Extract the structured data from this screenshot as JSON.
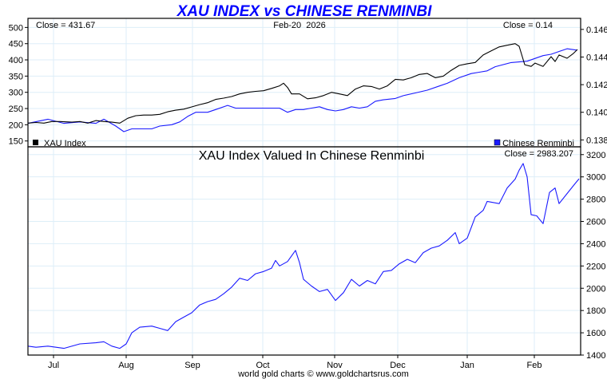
{
  "colors": {
    "xau": "#000000",
    "cny": "#1a1aff",
    "ratio": "#1a1aff",
    "grid": "#ddeef8",
    "title": "#0000ff"
  },
  "title": "XAU INDEX vs CHINESE RENMINBI",
  "footer": "world gold charts © www.goldchartsrus.com",
  "chart_data": [
    {
      "type": "line",
      "title": "XAU INDEX vs CHINESE RENMINBI",
      "date_label": "Feb-20  2026",
      "left_close": "Close = 431.67",
      "right_close": "Close = 0.14",
      "xlim": [
        0,
        173
      ],
      "x_unit": "trading days from chart start",
      "left_ylim": [
        132,
        528
      ],
      "left_ticks": [
        "150",
        "200",
        "250",
        "300",
        "350",
        "400",
        "450",
        "500"
      ],
      "right_ylim": [
        0.1375,
        0.1468
      ],
      "right_ticks": [
        "0.138",
        "0.140",
        "0.142",
        "0.144",
        "0.146"
      ],
      "legend": [
        {
          "label": "XAU Index",
          "placement": "bottom-left"
        },
        {
          "label": "Chinese Renminbi",
          "placement": "bottom-right"
        }
      ],
      "series": [
        {
          "name": "XAU Index",
          "axis": "left",
          "points": [
            [
              0,
              205
            ],
            [
              2.5,
              207
            ],
            [
              5,
              205
            ],
            [
              7.5,
              210
            ],
            [
              10,
              210
            ],
            [
              13.75,
              208
            ],
            [
              16.25,
              210
            ],
            [
              18.75,
              205
            ],
            [
              21.25,
              213
            ],
            [
              23.75,
              210
            ],
            [
              26.25,
              208
            ],
            [
              28.75,
              205
            ],
            [
              31.25,
              220
            ],
            [
              33.75,
              228
            ],
            [
              36.25,
              230
            ],
            [
              38.75,
              230
            ],
            [
              41.25,
              232
            ],
            [
              43.75,
              240
            ],
            [
              46.25,
              245
            ],
            [
              48.75,
              248
            ],
            [
              51.25,
              255
            ],
            [
              53.75,
              262
            ],
            [
              56.25,
              268
            ],
            [
              58.75,
              278
            ],
            [
              61.25,
              282
            ],
            [
              63.75,
              287
            ],
            [
              66.25,
              295
            ],
            [
              68.75,
              300
            ],
            [
              71.25,
              303
            ],
            [
              73.75,
              305
            ],
            [
              76.25,
              312
            ],
            [
              78.75,
              320
            ],
            [
              80,
              328
            ],
            [
              81.25,
              315
            ],
            [
              82.5,
              295
            ],
            [
              85,
              295
            ],
            [
              87.5,
              280
            ],
            [
              90,
              283
            ],
            [
              92.5,
              290
            ],
            [
              95,
              300
            ],
            [
              97.5,
              295
            ],
            [
              100,
              290
            ],
            [
              102.5,
              310
            ],
            [
              105,
              320
            ],
            [
              107.5,
              318
            ],
            [
              110,
              310
            ],
            [
              112.5,
              320
            ],
            [
              115,
              340
            ],
            [
              117.5,
              338
            ],
            [
              120,
              345
            ],
            [
              122.5,
              355
            ],
            [
              125,
              358
            ],
            [
              127.5,
              345
            ],
            [
              130,
              350
            ],
            [
              132.5,
              368
            ],
            [
              135,
              383
            ],
            [
              137.5,
              388
            ],
            [
              140,
              392
            ],
            [
              142.5,
              415
            ],
            [
              145,
              428
            ],
            [
              147.5,
              440
            ],
            [
              150,
              445
            ],
            [
              152.5,
              450
            ],
            [
              153.75,
              442
            ],
            [
              155.5,
              385
            ],
            [
              157.5,
              380
            ],
            [
              158.75,
              390
            ],
            [
              161.25,
              380
            ],
            [
              163.75,
              410
            ],
            [
              165,
              395
            ],
            [
              166.25,
              415
            ],
            [
              168.75,
              405
            ],
            [
              170.75,
              420
            ],
            [
              172,
              432
            ]
          ]
        },
        {
          "name": "Chinese Renminbi",
          "axis": "right",
          "points": [
            [
              0,
              0.1392
            ],
            [
              6.25,
              0.1395
            ],
            [
              11.25,
              0.1392
            ],
            [
              16.25,
              0.1393
            ],
            [
              21.25,
              0.1392
            ],
            [
              23.75,
              0.1395
            ],
            [
              27.5,
              0.139
            ],
            [
              30,
              0.1386
            ],
            [
              32.5,
              0.1388
            ],
            [
              36.25,
              0.1388
            ],
            [
              38.75,
              0.1388
            ],
            [
              41.25,
              0.139
            ],
            [
              45,
              0.1391
            ],
            [
              47.5,
              0.1393
            ],
            [
              50,
              0.1397
            ],
            [
              52.5,
              0.14
            ],
            [
              56.25,
              0.14
            ],
            [
              58.75,
              0.1402
            ],
            [
              62.5,
              0.1405
            ],
            [
              65,
              0.1403
            ],
            [
              68.75,
              0.1403
            ],
            [
              73.75,
              0.1403
            ],
            [
              78.75,
              0.1403
            ],
            [
              81.25,
              0.14
            ],
            [
              83.75,
              0.1402
            ],
            [
              86.25,
              0.1402
            ],
            [
              88.75,
              0.1403
            ],
            [
              91.25,
              0.1404
            ],
            [
              93.75,
              0.1402
            ],
            [
              96.25,
              0.1401
            ],
            [
              98.75,
              0.1402
            ],
            [
              101.25,
              0.1404
            ],
            [
              103.75,
              0.1403
            ],
            [
              106.25,
              0.1404
            ],
            [
              108.75,
              0.1408
            ],
            [
              111.25,
              0.1409
            ],
            [
              115,
              0.141
            ],
            [
              117.5,
              0.1412
            ],
            [
              121.25,
              0.1414
            ],
            [
              125,
              0.1416
            ],
            [
              128.75,
              0.1419
            ],
            [
              131.25,
              0.1421
            ],
            [
              135,
              0.1425
            ],
            [
              138.75,
              0.1428
            ],
            [
              141.25,
              0.1429
            ],
            [
              143.75,
              0.143
            ],
            [
              146.25,
              0.1433
            ],
            [
              151.25,
              0.1436
            ],
            [
              156.25,
              0.1437
            ],
            [
              161.25,
              0.1441
            ],
            [
              163.75,
              0.1442
            ],
            [
              166.25,
              0.1444
            ],
            [
              168.75,
              0.1446
            ],
            [
              171.75,
              0.1445
            ]
          ]
        }
      ]
    },
    {
      "type": "line",
      "title": "XAU Index Valued In Chinese Renminbi",
      "close": "Close = 2983.207",
      "xlim": [
        0,
        173
      ],
      "ylim": [
        1400,
        3270
      ],
      "yticks": [
        "1400",
        "1600",
        "1800",
        "2000",
        "2200",
        "2400",
        "2600",
        "2800",
        "3000",
        "3200"
      ],
      "xticks": [
        {
          "label": "Jul",
          "x": 8
        },
        {
          "label": "Aug",
          "x": 30.75
        },
        {
          "label": "Sep",
          "x": 51.5
        },
        {
          "label": "Oct",
          "x": 73.5
        },
        {
          "label": "Nov",
          "x": 96
        },
        {
          "label": "Dec",
          "x": 115.75
        },
        {
          "label": "Jan",
          "x": 137.5
        },
        {
          "label": "Feb",
          "x": 158.5
        }
      ],
      "series": [
        {
          "name": "XAU Index in CNY",
          "points": [
            [
              0,
              1480
            ],
            [
              2.5,
              1470
            ],
            [
              6.25,
              1480
            ],
            [
              11.25,
              1460
            ],
            [
              16.25,
              1500
            ],
            [
              21.25,
              1510
            ],
            [
              23.75,
              1520
            ],
            [
              26.25,
              1480
            ],
            [
              28.75,
              1460
            ],
            [
              30.75,
              1500
            ],
            [
              32.5,
              1600
            ],
            [
              35,
              1650
            ],
            [
              38.75,
              1660
            ],
            [
              41.25,
              1640
            ],
            [
              43.75,
              1620
            ],
            [
              46.25,
              1700
            ],
            [
              48.75,
              1740
            ],
            [
              51.25,
              1780
            ],
            [
              53.75,
              1850
            ],
            [
              56.25,
              1880
            ],
            [
              58.75,
              1900
            ],
            [
              61.25,
              1950
            ],
            [
              63.75,
              2010
            ],
            [
              66.25,
              2090
            ],
            [
              68.75,
              2070
            ],
            [
              71.25,
              2130
            ],
            [
              73.75,
              2150
            ],
            [
              76.25,
              2180
            ],
            [
              77.5,
              2250
            ],
            [
              78.75,
              2200
            ],
            [
              81.25,
              2240
            ],
            [
              83.75,
              2340
            ],
            [
              85,
              2230
            ],
            [
              86.25,
              2080
            ],
            [
              88.75,
              2020
            ],
            [
              91.25,
              1970
            ],
            [
              93.75,
              1990
            ],
            [
              96.25,
              1890
            ],
            [
              98.75,
              1960
            ],
            [
              101.25,
              2080
            ],
            [
              103.75,
              2020
            ],
            [
              106.25,
              2070
            ],
            [
              108.75,
              2040
            ],
            [
              111.25,
              2150
            ],
            [
              113.75,
              2160
            ],
            [
              116.25,
              2220
            ],
            [
              118.75,
              2260
            ],
            [
              121.25,
              2230
            ],
            [
              123.75,
              2320
            ],
            [
              126.25,
              2360
            ],
            [
              128.75,
              2380
            ],
            [
              131.25,
              2430
            ],
            [
              133.75,
              2500
            ],
            [
              135,
              2400
            ],
            [
              137.5,
              2450
            ],
            [
              140,
              2640
            ],
            [
              142.5,
              2700
            ],
            [
              143.75,
              2780
            ],
            [
              147.5,
              2760
            ],
            [
              150,
              2900
            ],
            [
              152.5,
              2980
            ],
            [
              153.75,
              3060
            ],
            [
              155,
              3120
            ],
            [
              156.25,
              3000
            ],
            [
              157.5,
              2660
            ],
            [
              159.25,
              2650
            ],
            [
              161.25,
              2580
            ],
            [
              163.25,
              2860
            ],
            [
              165,
              2900
            ],
            [
              166.25,
              2760
            ],
            [
              168.75,
              2850
            ],
            [
              171.25,
              2940
            ],
            [
              172.5,
              2983
            ]
          ]
        }
      ]
    }
  ]
}
